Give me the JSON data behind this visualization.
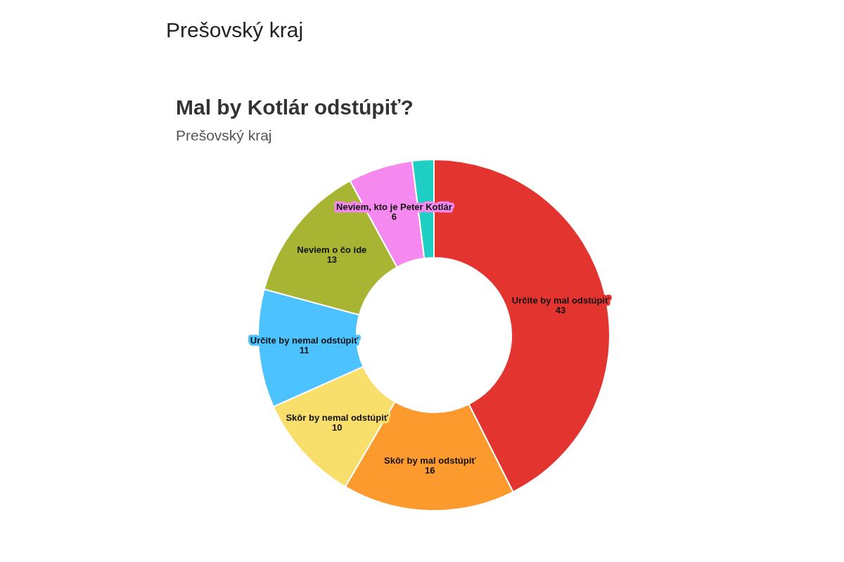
{
  "chart_data": {
    "type": "donut",
    "title": "Mal by Kotlár odstúpiť?",
    "subtitle": "Prešovský kraj",
    "annotations": [
      "Prešovský kraj"
    ],
    "categories": [
      "Určite by mal odstúpiť",
      "Skôr by mal odstúpiť",
      "Skôr by nemal odstúpiť",
      "Určite by nemal odstúpiť",
      "Neviem o čo ide",
      "Neviem, kto je Peter Kotlár",
      null
    ],
    "values": [
      43,
      16,
      10,
      11,
      13,
      6,
      2
    ],
    "colors": [
      "#e3342f",
      "#fd9a2e",
      "#f8df6b",
      "#4cc3ff",
      "#a8b532",
      "#f589f0",
      "#1ecfc3"
    ],
    "value_labels": [
      "43",
      "16",
      "10",
      "11",
      "13",
      "6",
      null
    ]
  }
}
